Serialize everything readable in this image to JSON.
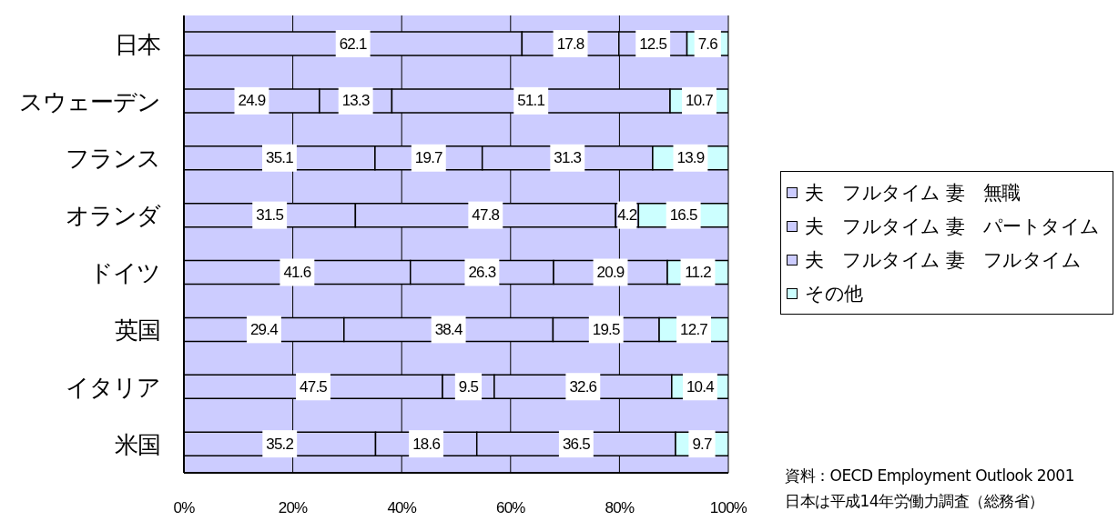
{
  "chart_data": {
    "type": "bar",
    "orientation": "horizontal",
    "stacked": true,
    "categories": [
      "日本",
      "スウェーデン",
      "フランス",
      "オランダ",
      "ドイツ",
      "英国",
      "イタリア",
      "米国"
    ],
    "series": [
      {
        "name": "夫　フルタイム 妻　無職",
        "color": "#ccccff",
        "values": [
          62.1,
          24.9,
          35.1,
          31.5,
          41.6,
          29.4,
          47.5,
          35.2
        ]
      },
      {
        "name": "夫　フルタイム 妻　パートタイム",
        "color": "#ccccff",
        "values": [
          17.8,
          13.3,
          19.7,
          47.8,
          26.3,
          38.4,
          9.5,
          18.6
        ]
      },
      {
        "name": "夫　フルタイム 妻　フルタイム",
        "color": "#ccccff",
        "values": [
          12.5,
          51.1,
          31.3,
          4.2,
          20.9,
          19.5,
          32.6,
          36.5
        ]
      },
      {
        "name": "その他",
        "color": "#ccffff",
        "values": [
          7.6,
          10.7,
          13.9,
          16.5,
          11.2,
          12.7,
          10.4,
          9.7
        ]
      }
    ],
    "xlim": [
      0,
      100
    ],
    "xticks": [
      {
        "value": 0,
        "label": "0%"
      },
      {
        "value": 20,
        "label": "20%"
      },
      {
        "value": 40,
        "label": "40%"
      },
      {
        "value": 60,
        "label": "60%"
      },
      {
        "value": 80,
        "label": "80%"
      },
      {
        "value": 100,
        "label": "100%"
      }
    ],
    "grid": "x",
    "legend": "right",
    "data_labels": true,
    "annotations": [
      "資料：OECD Employment Outlook 2001",
      "日本は平成14年労働力調査（総務省）"
    ]
  }
}
